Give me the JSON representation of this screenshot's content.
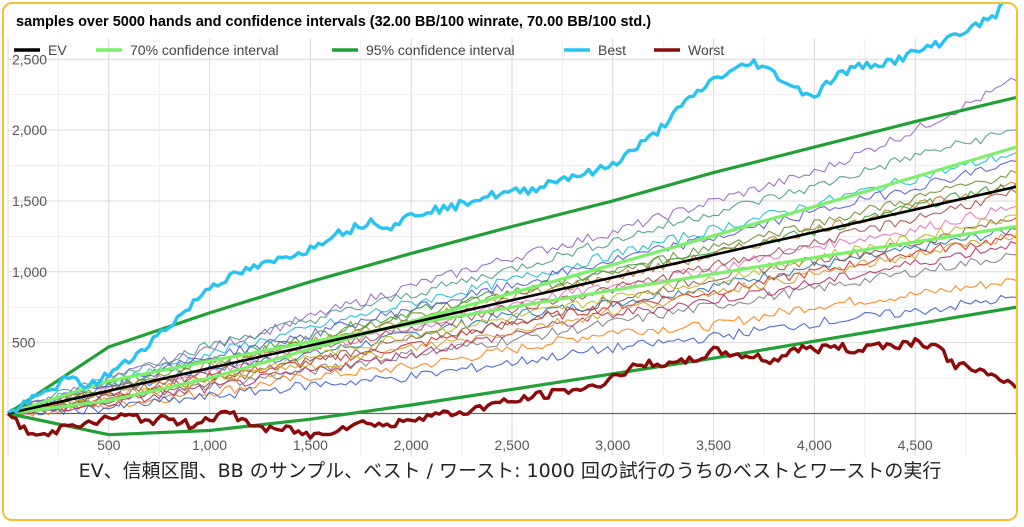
{
  "chart_data": {
    "type": "line",
    "title": "samples over 5000 hands and confidence intervals (32.00 BB/100 winrate, 70.00 BB/100 std.)",
    "xlim": [
      0,
      5000
    ],
    "ylim": [
      -300,
      2650
    ],
    "x_ticks": [
      500,
      1000,
      1500,
      2000,
      2500,
      3000,
      3500,
      4000,
      4500
    ],
    "x_tick_labels": [
      "500",
      "1,000",
      "1,500",
      "2,000",
      "2,500",
      "3,000",
      "3,500",
      "4,000",
      "4,500"
    ],
    "y_ticks": [
      500,
      1000,
      1500,
      2000,
      2500
    ],
    "y_tick_labels": [
      "500",
      "1,000",
      "1,500",
      "2,000",
      "2,500"
    ],
    "grid": true,
    "legend_position": "top",
    "winrate_bb_per_100": 32,
    "std_bb_per_100": 70,
    "series": [
      {
        "name": "EV",
        "color": "#000000",
        "x": [
          0,
          5000
        ],
        "y": [
          0,
          1600
        ]
      },
      {
        "name": "70% confidence interval",
        "color": "#7cf06a",
        "x": [
          0,
          500,
          1000,
          1500,
          2000,
          2500,
          3000,
          3500,
          4000,
          4500,
          5000
        ],
        "y_upper": [
          0,
          230,
          370,
          505,
          630,
          750,
          870,
          985,
          1100,
          1210,
          1320
        ],
        "y_lower": [
          0,
          90,
          250,
          455,
          650,
          850,
          1050,
          1255,
          1460,
          1670,
          1880
        ]
      },
      {
        "name": "95% confidence interval",
        "color": "#22a035",
        "x": [
          0,
          500,
          1000,
          1500,
          2000,
          2500,
          3000,
          3500,
          4000,
          4500,
          5000
        ],
        "y_upper": [
          0,
          470,
          710,
          930,
          1130,
          1320,
          1500,
          1700,
          1880,
          2060,
          2230
        ],
        "y_lower": [
          0,
          -150,
          -120,
          -40,
          60,
          170,
          280,
          390,
          510,
          630,
          750
        ]
      },
      {
        "name": "Best",
        "color": "#29c3f2",
        "x": [
          0,
          100,
          200,
          300,
          400,
          500,
          600,
          700,
          800,
          900,
          1000,
          1100,
          1200,
          1300,
          1400,
          1500,
          1600,
          1700,
          1800,
          1900,
          2000,
          2100,
          2200,
          2300,
          2400,
          2500,
          2600,
          2700,
          2800,
          2900,
          3000,
          3100,
          3200,
          3300,
          3400,
          3500,
          3600,
          3700,
          3800,
          3900,
          4000,
          4100,
          4200,
          4300,
          4400,
          4500,
          4600,
          4700,
          4800,
          4900,
          5000
        ],
        "y": [
          0,
          80,
          160,
          250,
          190,
          280,
          370,
          500,
          620,
          750,
          900,
          960,
          1020,
          1060,
          1120,
          1160,
          1260,
          1300,
          1360,
          1320,
          1400,
          1440,
          1450,
          1510,
          1540,
          1560,
          1580,
          1640,
          1680,
          1700,
          1760,
          1860,
          1960,
          2110,
          2240,
          2360,
          2420,
          2480,
          2400,
          2300,
          2240,
          2380,
          2440,
          2470,
          2490,
          2550,
          2600,
          2680,
          2730,
          2820,
          2970
        ]
      },
      {
        "name": "Worst",
        "color": "#8b0a0a",
        "x": [
          0,
          100,
          200,
          300,
          400,
          500,
          600,
          700,
          800,
          900,
          1000,
          1100,
          1200,
          1300,
          1400,
          1500,
          1600,
          1700,
          1800,
          1900,
          2000,
          2100,
          2200,
          2300,
          2400,
          2500,
          2600,
          2700,
          2800,
          2900,
          3000,
          3100,
          3200,
          3300,
          3400,
          3500,
          3600,
          3700,
          3800,
          3900,
          4000,
          4100,
          4200,
          4300,
          4400,
          4500,
          4600,
          4700,
          4800,
          4900,
          5000
        ],
        "y": [
          0,
          -140,
          -160,
          -60,
          -80,
          -30,
          -20,
          -50,
          -40,
          -80,
          -30,
          0,
          -70,
          -120,
          -110,
          -160,
          -120,
          -80,
          -60,
          -90,
          -30,
          -10,
          0,
          20,
          70,
          80,
          120,
          140,
          170,
          180,
          260,
          320,
          360,
          340,
          380,
          440,
          420,
          400,
          370,
          460,
          450,
          480,
          440,
          490,
          480,
          510,
          480,
          340,
          320,
          240,
          180
        ]
      }
    ],
    "sample_runs": [
      {
        "color": "#1f77b4",
        "y": [
          0,
          150,
          320,
          420,
          560,
          700,
          780,
          900,
          1040,
          1160,
          1300
        ]
      },
      {
        "color": "#ff7f0e",
        "y": [
          0,
          60,
          150,
          260,
          330,
          450,
          580,
          620,
          760,
          840,
          940
        ]
      },
      {
        "color": "#2ca02c",
        "y": [
          0,
          200,
          380,
          540,
          720,
          860,
          1000,
          1160,
          1280,
          1460,
          1620
        ]
      },
      {
        "color": "#d62728",
        "y": [
          0,
          120,
          260,
          360,
          480,
          640,
          760,
          860,
          1000,
          1140,
          1240
        ]
      },
      {
        "color": "#9467bd",
        "y": [
          0,
          240,
          460,
          680,
          900,
          1100,
          1280,
          1500,
          1700,
          2000,
          2350
        ]
      },
      {
        "color": "#8c564b",
        "y": [
          0,
          100,
          220,
          380,
          520,
          640,
          800,
          960,
          1080,
          1200,
          1380
        ]
      },
      {
        "color": "#e377c2",
        "y": [
          0,
          180,
          300,
          460,
          600,
          780,
          900,
          1020,
          1180,
          1300,
          1460
        ]
      },
      {
        "color": "#7f7f7f",
        "y": [
          0,
          80,
          200,
          300,
          420,
          520,
          640,
          760,
          880,
          1000,
          1120
        ]
      },
      {
        "color": "#bcbd22",
        "y": [
          0,
          140,
          240,
          400,
          560,
          680,
          820,
          940,
          1100,
          1240,
          1400
        ]
      },
      {
        "color": "#17becf",
        "y": [
          0,
          220,
          420,
          600,
          780,
          940,
          1120,
          1300,
          1480,
          1660,
          1840
        ]
      },
      {
        "color": "#3f5fc4",
        "y": [
          0,
          40,
          120,
          200,
          260,
          360,
          460,
          540,
          640,
          720,
          820
        ]
      },
      {
        "color": "#c07a20",
        "y": [
          0,
          160,
          340,
          500,
          660,
          820,
          960,
          1120,
          1300,
          1460,
          1620
        ]
      },
      {
        "color": "#4a9a8a",
        "y": [
          0,
          260,
          480,
          660,
          840,
          1020,
          1220,
          1420,
          1600,
          1820,
          2000
        ]
      },
      {
        "color": "#b0306a",
        "y": [
          0,
          70,
          180,
          300,
          420,
          560,
          700,
          800,
          920,
          1060,
          1200
        ]
      },
      {
        "color": "#6a8f2c",
        "y": [
          0,
          190,
          360,
          520,
          700,
          840,
          1000,
          1180,
          1340,
          1520,
          1700
        ]
      },
      {
        "color": "#a05050",
        "y": [
          0,
          130,
          290,
          460,
          600,
          740,
          880,
          1040,
          1200,
          1380,
          1560
        ]
      },
      {
        "color": "#d4a020",
        "y": [
          0,
          110,
          230,
          330,
          460,
          580,
          720,
          860,
          980,
          1120,
          1260
        ]
      },
      {
        "color": "#5a5ad0",
        "y": [
          0,
          210,
          400,
          560,
          740,
          900,
          1080,
          1240,
          1420,
          1600,
          1780
        ]
      }
    ]
  },
  "caption": "EV、信頼区間、BB のサンプル、ベスト / ワースト: 1000 回の試行のうちのベストとワーストの実行"
}
